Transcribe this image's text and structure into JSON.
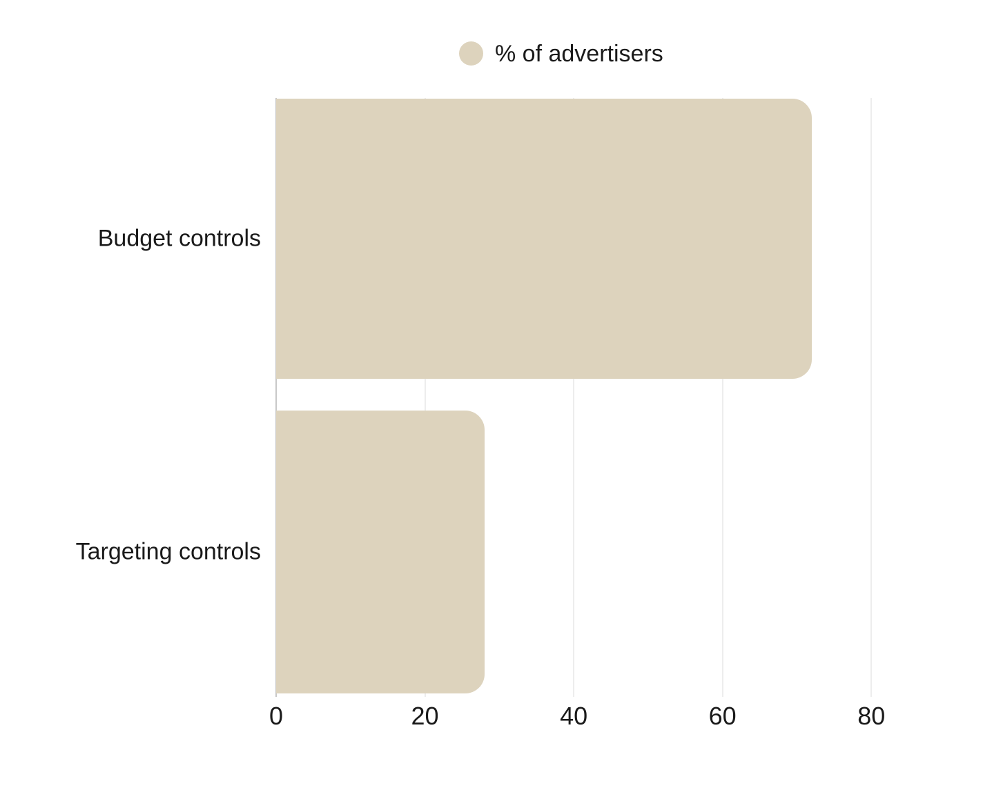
{
  "legend": {
    "label": "% of advertisers"
  },
  "colors": {
    "bar": "#ddd3bd",
    "grid": "#ededed",
    "axis": "#c8c8c8",
    "text": "#1a1a1a",
    "background": "#ffffff"
  },
  "chart_data": {
    "type": "bar",
    "orientation": "horizontal",
    "title": "",
    "categories": [
      "Budget controls",
      "Targeting controls"
    ],
    "series": [
      {
        "name": "% of advertisers",
        "values": [
          72,
          28
        ]
      }
    ],
    "xlabel": "",
    "ylabel": "",
    "xlim": [
      0,
      90
    ],
    "xticks": [
      0,
      20,
      40,
      60,
      80
    ],
    "grid": true,
    "legend_position": "top-center"
  }
}
